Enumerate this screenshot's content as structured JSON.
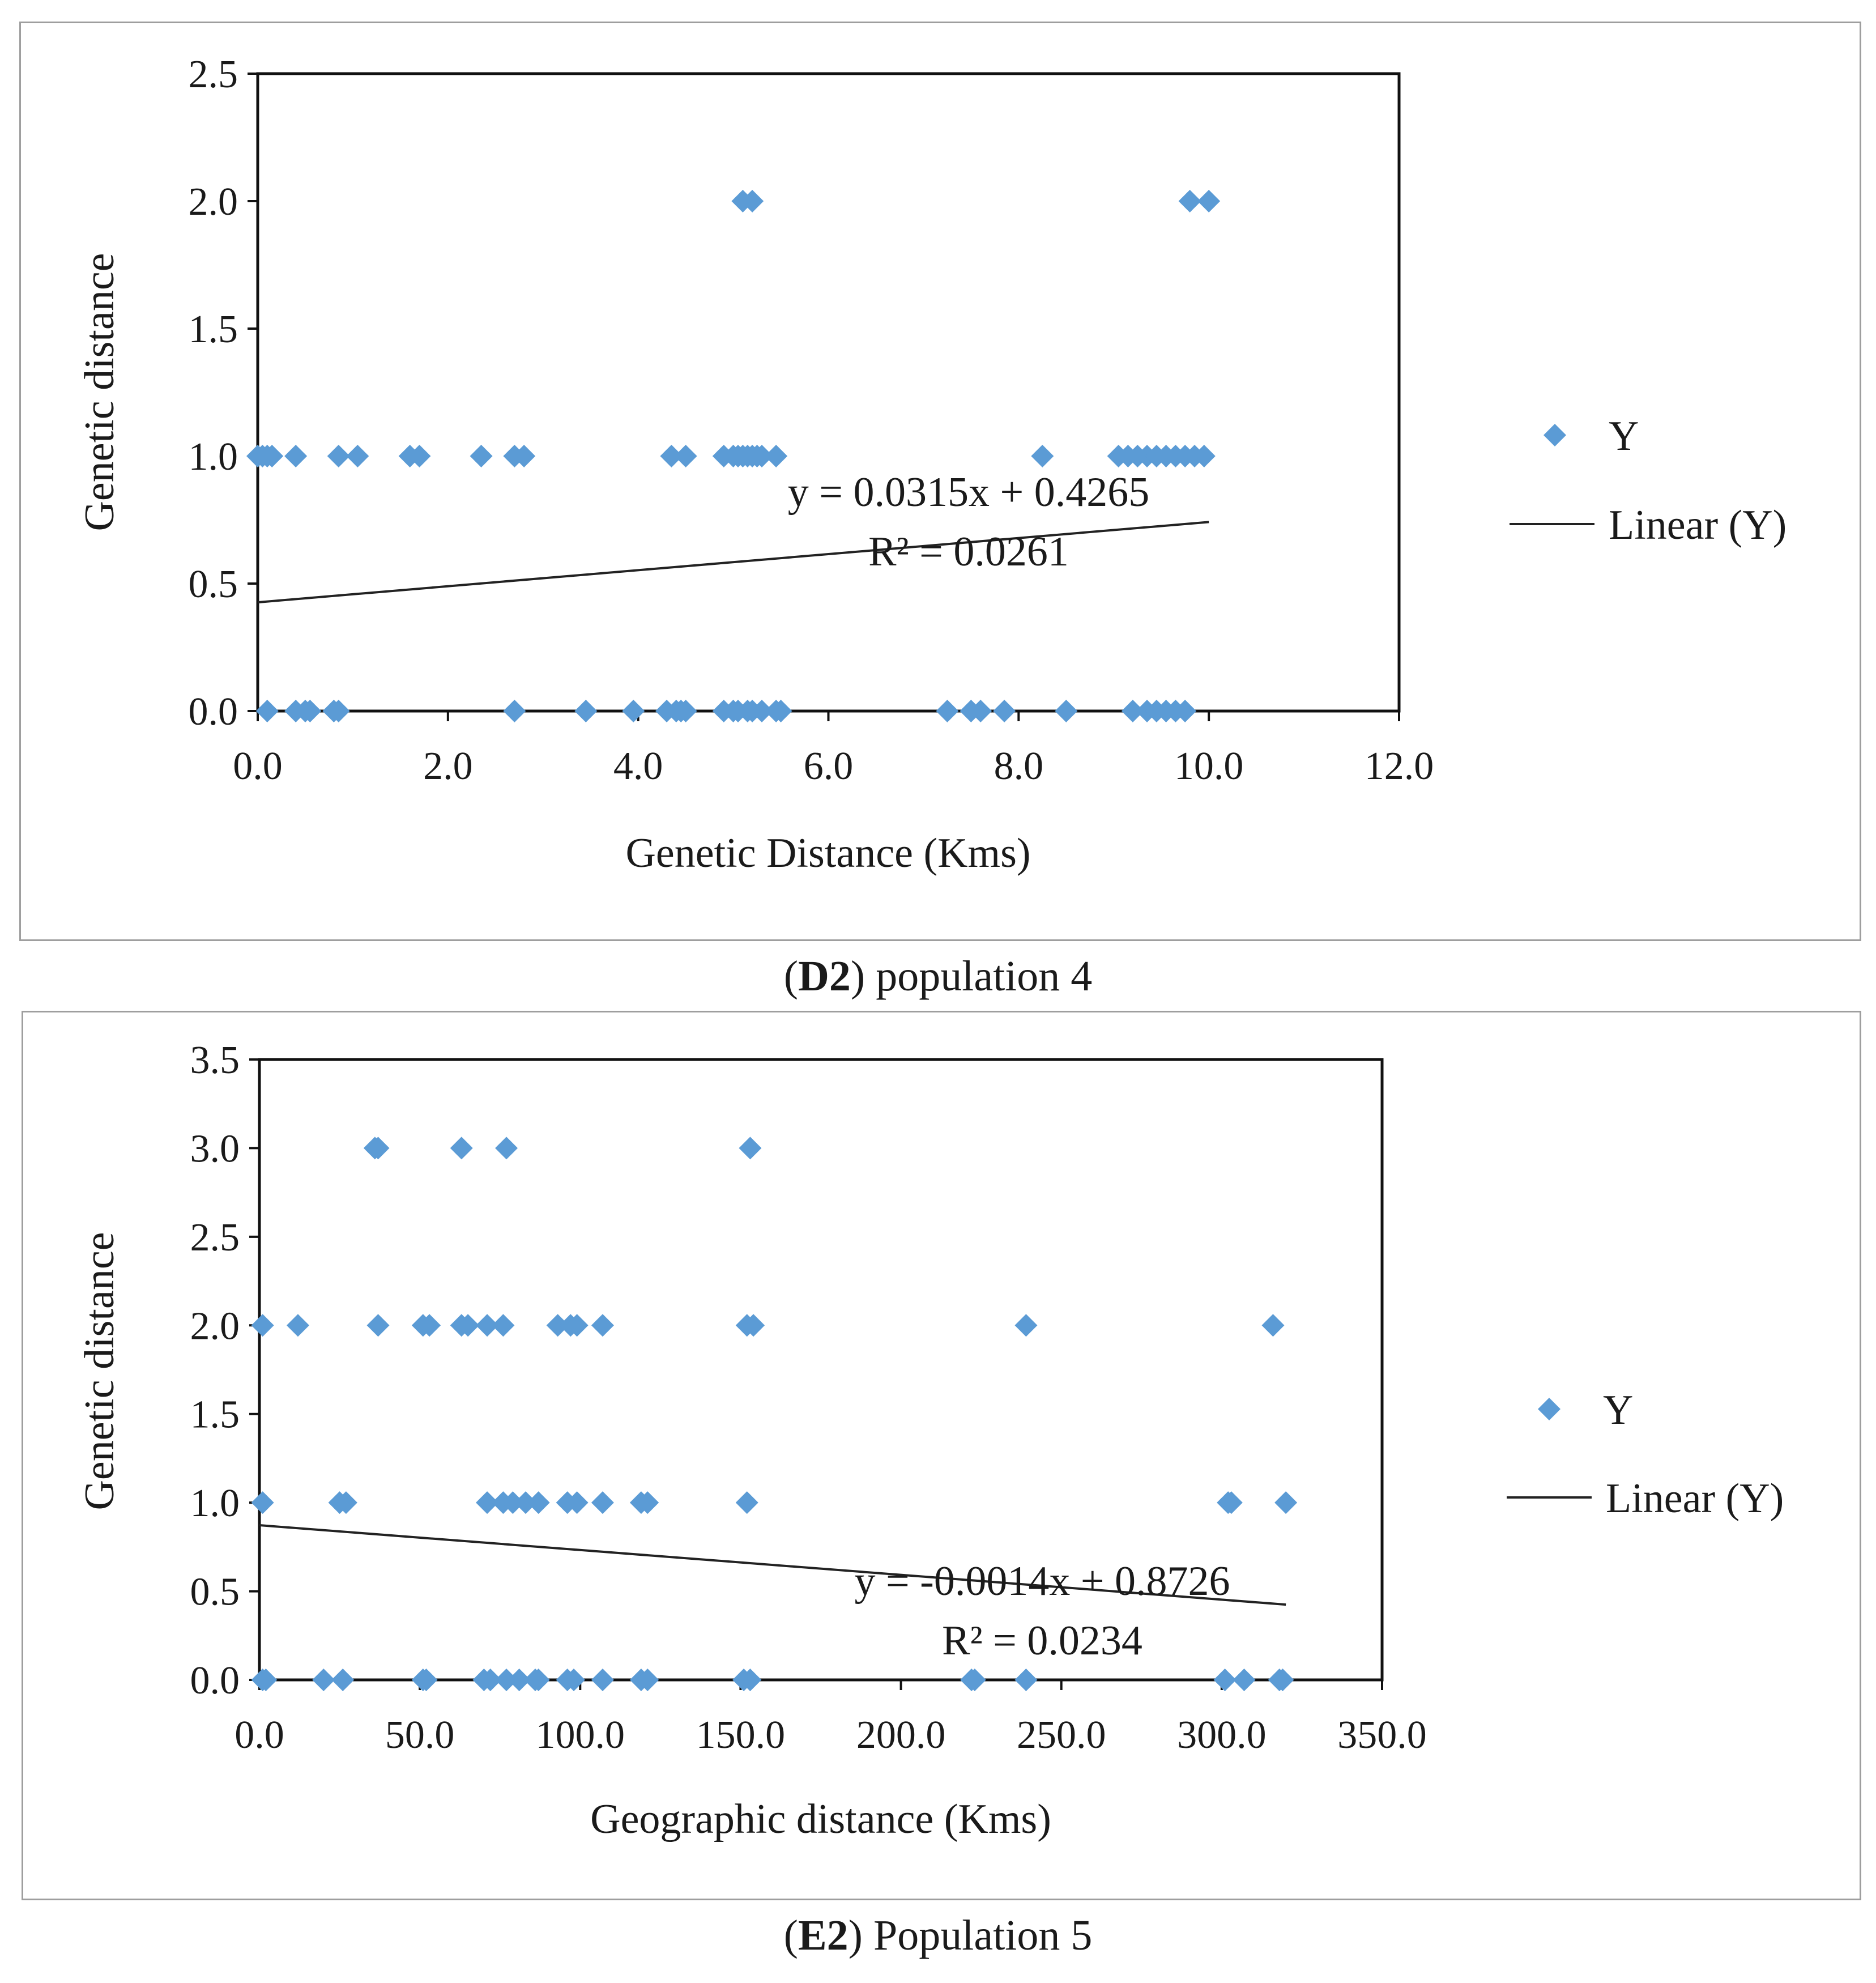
{
  "chart_data": [
    {
      "type": "scatter",
      "title": "",
      "xlabel": "Genetic Distance (Kms)",
      "ylabel": "Genetic distance",
      "xlim": [
        0,
        12
      ],
      "ylim": [
        0,
        2.5
      ],
      "x_ticks": [
        "0.0",
        "2.0",
        "4.0",
        "6.0",
        "8.0",
        "10.0",
        "12.0"
      ],
      "y_ticks": [
        "0.0",
        "0.5",
        "1.0",
        "1.5",
        "2.0",
        "2.5"
      ],
      "grid": false,
      "legend_position": "right",
      "legend": {
        "series_label": "Y",
        "trend_label": "Linear (Y)"
      },
      "trendline": {
        "slope": 0.0315,
        "intercept": 0.4265,
        "x_range": [
          0,
          10
        ],
        "equation": "y = 0.0315x + 0.4265",
        "r2": "R² = 0.0261"
      },
      "caption": {
        "id": "D2",
        "text": "population 4"
      },
      "series": [
        {
          "name": "Y",
          "points": [
            [
              0.0,
              1
            ],
            [
              0.05,
              1
            ],
            [
              0.1,
              1
            ],
            [
              0.15,
              1
            ],
            [
              0.4,
              1
            ],
            [
              0.85,
              1
            ],
            [
              1.05,
              1
            ],
            [
              1.6,
              1
            ],
            [
              1.7,
              1
            ],
            [
              2.35,
              1
            ],
            [
              2.7,
              1
            ],
            [
              2.8,
              1
            ],
            [
              4.35,
              1
            ],
            [
              4.5,
              1
            ],
            [
              4.9,
              1
            ],
            [
              5.0,
              1
            ],
            [
              5.05,
              1
            ],
            [
              5.1,
              1
            ],
            [
              5.15,
              1
            ],
            [
              5.2,
              1
            ],
            [
              5.25,
              1
            ],
            [
              5.3,
              1
            ],
            [
              5.45,
              1
            ],
            [
              8.25,
              1
            ],
            [
              9.05,
              1
            ],
            [
              9.15,
              1
            ],
            [
              9.25,
              1
            ],
            [
              9.35,
              1
            ],
            [
              9.45,
              1
            ],
            [
              9.55,
              1
            ],
            [
              9.65,
              1
            ],
            [
              9.75,
              1
            ],
            [
              9.85,
              1
            ],
            [
              9.95,
              1
            ],
            [
              5.1,
              2
            ],
            [
              5.2,
              2
            ],
            [
              9.8,
              2
            ],
            [
              10.0,
              2
            ],
            [
              0.1,
              0
            ],
            [
              0.4,
              0
            ],
            [
              0.5,
              0
            ],
            [
              0.55,
              0
            ],
            [
              0.8,
              0
            ],
            [
              0.85,
              0
            ],
            [
              2.7,
              0
            ],
            [
              3.45,
              0
            ],
            [
              3.95,
              0
            ],
            [
              4.3,
              0
            ],
            [
              4.4,
              0
            ],
            [
              4.45,
              0
            ],
            [
              4.5,
              0
            ],
            [
              4.9,
              0
            ],
            [
              5.0,
              0
            ],
            [
              5.05,
              0
            ],
            [
              5.15,
              0
            ],
            [
              5.2,
              0
            ],
            [
              5.3,
              0
            ],
            [
              5.45,
              0
            ],
            [
              5.5,
              0
            ],
            [
              7.25,
              0
            ],
            [
              7.5,
              0
            ],
            [
              7.6,
              0
            ],
            [
              7.85,
              0
            ],
            [
              8.5,
              0
            ],
            [
              9.2,
              0
            ],
            [
              9.35,
              0
            ],
            [
              9.45,
              0
            ],
            [
              9.55,
              0
            ],
            [
              9.65,
              0
            ],
            [
              9.75,
              0
            ]
          ]
        }
      ]
    },
    {
      "type": "scatter",
      "title": "",
      "xlabel": "Geographic distance (Kms)",
      "ylabel": "Genetic distance",
      "xlim": [
        0,
        350
      ],
      "ylim": [
        0,
        3.5
      ],
      "x_ticks": [
        "0.0",
        "50.0",
        "100.0",
        "150.0",
        "200.0",
        "250.0",
        "300.0",
        "350.0"
      ],
      "y_ticks": [
        "0.0",
        "0.5",
        "1.0",
        "1.5",
        "2.0",
        "2.5",
        "3.0",
        "3.5"
      ],
      "grid": false,
      "legend_position": "right",
      "legend": {
        "series_label": "Y",
        "trend_label": "Linear (Y)"
      },
      "trendline": {
        "slope": -0.0014,
        "intercept": 0.8726,
        "x_range": [
          0,
          320
        ],
        "equation": "y = -0.0014x + 0.8726",
        "r2": "R² = 0.0234"
      },
      "caption": {
        "id": "E2",
        "text": "Population 5"
      },
      "series": [
        {
          "name": "Y",
          "points": [
            [
              36,
              3
            ],
            [
              37,
              3
            ],
            [
              63,
              3
            ],
            [
              77,
              3
            ],
            [
              153,
              3
            ],
            [
              1,
              2
            ],
            [
              12,
              2
            ],
            [
              37,
              2
            ],
            [
              51,
              2
            ],
            [
              53,
              2
            ],
            [
              63,
              2
            ],
            [
              65,
              2
            ],
            [
              71,
              2
            ],
            [
              76,
              2
            ],
            [
              93,
              2
            ],
            [
              97,
              2
            ],
            [
              99,
              2
            ],
            [
              107,
              2
            ],
            [
              152,
              2
            ],
            [
              154,
              2
            ],
            [
              239,
              2
            ],
            [
              316,
              2
            ],
            [
              1,
              1
            ],
            [
              25,
              1
            ],
            [
              27,
              1
            ],
            [
              71,
              1
            ],
            [
              76,
              1
            ],
            [
              79,
              1
            ],
            [
              83,
              1
            ],
            [
              87,
              1
            ],
            [
              96,
              1
            ],
            [
              99,
              1
            ],
            [
              107,
              1
            ],
            [
              119,
              1
            ],
            [
              121,
              1
            ],
            [
              152,
              1
            ],
            [
              302,
              1
            ],
            [
              303,
              1
            ],
            [
              320,
              1
            ],
            [
              1,
              0
            ],
            [
              2,
              0
            ],
            [
              20,
              0
            ],
            [
              26,
              0
            ],
            [
              51,
              0
            ],
            [
              52,
              0
            ],
            [
              70,
              0
            ],
            [
              72,
              0
            ],
            [
              77,
              0
            ],
            [
              81,
              0
            ],
            [
              86,
              0
            ],
            [
              87,
              0
            ],
            [
              96,
              0
            ],
            [
              98,
              0
            ],
            [
              107,
              0
            ],
            [
              119,
              0
            ],
            [
              121,
              0
            ],
            [
              151,
              0
            ],
            [
              153,
              0
            ],
            [
              222,
              0
            ],
            [
              223,
              0
            ],
            [
              239,
              0
            ],
            [
              301,
              0
            ],
            [
              307,
              0
            ],
            [
              318,
              0
            ],
            [
              319,
              0
            ]
          ]
        }
      ]
    }
  ],
  "colors": {
    "marker": "#5b9bd5",
    "trend": "#222222",
    "frame": "#9e9e9e"
  }
}
